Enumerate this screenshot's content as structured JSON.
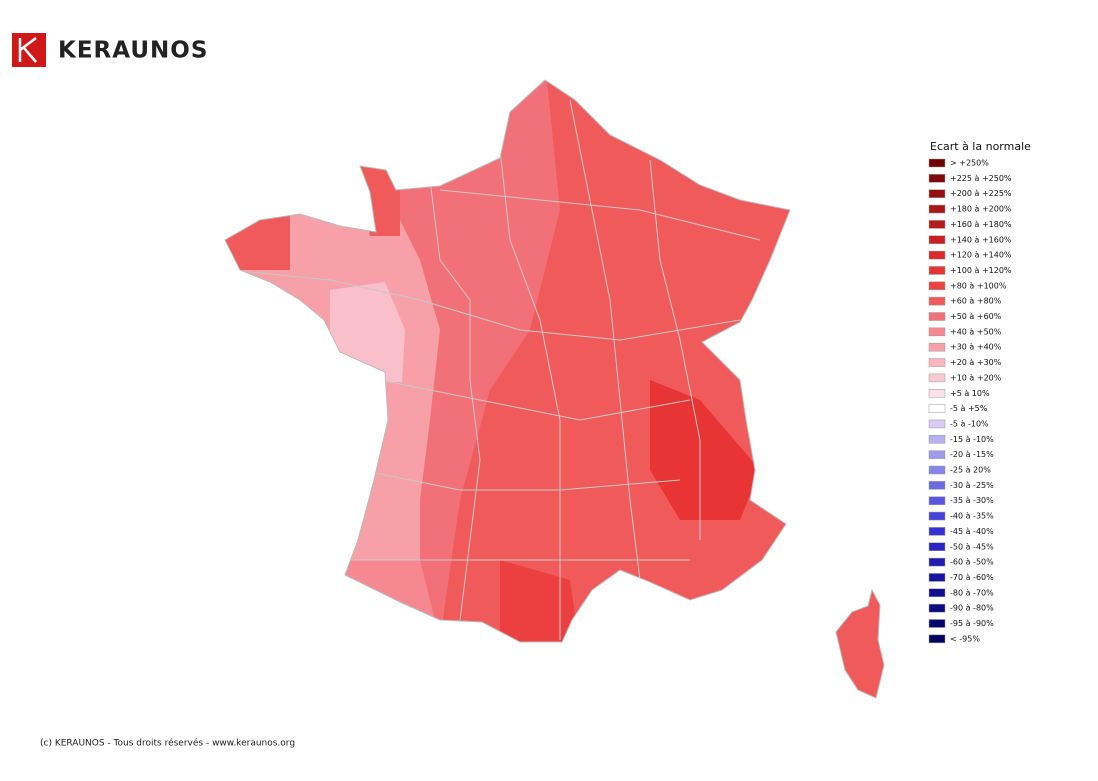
{
  "header": {
    "brand": "KERAUNOS"
  },
  "legend": {
    "title": "Ecart à la normale",
    "items": [
      {
        "label": "> +250%",
        "color": "#6e0000"
      },
      {
        "label": "+225 à +250%",
        "color": "#800a0a"
      },
      {
        "label": "+200 à +225%",
        "color": "#941010"
      },
      {
        "label": "+180 à +200%",
        "color": "#a51616"
      },
      {
        "label": "+160 à +180%",
        "color": "#b61c1c"
      },
      {
        "label": "+140 à +160%",
        "color": "#c82222"
      },
      {
        "label": "+120 à +140%",
        "color": "#d82a2a"
      },
      {
        "label": "+100 à +120%",
        "color": "#e43434"
      },
      {
        "label": "+80 à +100%",
        "color": "#ec4242"
      },
      {
        "label": "+60 à +80%",
        "color": "#f05a5a"
      },
      {
        "label": "+50 à +60%",
        "color": "#f27078"
      },
      {
        "label": "+40 à +50%",
        "color": "#f58890"
      },
      {
        "label": "+30 à +40%",
        "color": "#f7a0a8"
      },
      {
        "label": "+20 à +30%",
        "color": "#f9b6c2"
      },
      {
        "label": "+10 à +20%",
        "color": "#fac8d4"
      },
      {
        "label": "+5 à 10%",
        "color": "#fde0ea"
      },
      {
        "label": "-5 à +5%",
        "color": "#ffffff"
      },
      {
        "label": "-5 à -10%",
        "color": "#d8ccf4"
      },
      {
        "label": "-15 à -10%",
        "color": "#b8b0f0"
      },
      {
        "label": "-20 à -15%",
        "color": "#a09aee"
      },
      {
        "label": "-25 à 20%",
        "color": "#8884ea"
      },
      {
        "label": "-30 à -25%",
        "color": "#6e6ae6"
      },
      {
        "label": "-35 à -30%",
        "color": "#5a56e2"
      },
      {
        "label": "-40 à -35%",
        "color": "#4640dc"
      },
      {
        "label": "-45 à -40%",
        "color": "#3630d4"
      },
      {
        "label": "-50 à -45%",
        "color": "#2a26c6"
      },
      {
        "label": "-60 à -50%",
        "color": "#201cb6"
      },
      {
        "label": "-70 à -60%",
        "color": "#1814a4"
      },
      {
        "label": "-80 à -70%",
        "color": "#120e92"
      },
      {
        "label": "-90 à -80%",
        "color": "#0c0a80"
      },
      {
        "label": "-95 à -90%",
        "color": "#08066e"
      },
      {
        "label": "< -95%",
        "color": "#04045e"
      }
    ]
  },
  "footer": {
    "text": "(c) KERAUNOS - Tous droits réservés - www.keraunos.org"
  }
}
